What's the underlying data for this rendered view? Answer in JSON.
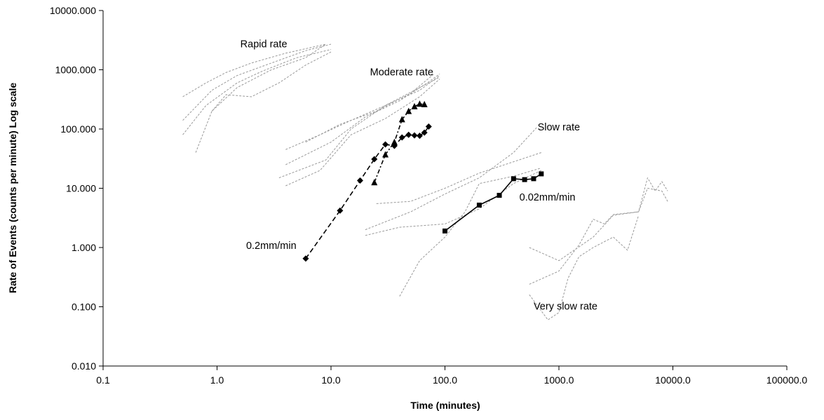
{
  "chart_data": {
    "type": "scatter",
    "title": "",
    "xlabel": "Time (minutes)",
    "ylabel": "Rate of Events (counts per minute) Log scale",
    "xscale": "log",
    "yscale": "log",
    "xlim": [
      0.1,
      100000
    ],
    "ylim": [
      0.01,
      10000
    ],
    "xticks": [
      "0.1",
      "1.0",
      "10.0",
      "100.0",
      "1000.0",
      "10000.0",
      "100000.0"
    ],
    "yticks": [
      "0.010",
      "0.100",
      "1.000",
      "10.000",
      "100.000",
      "1000.000",
      "10000.000"
    ],
    "grid": false,
    "legend": "none",
    "annotations": [
      {
        "text": "Rapid rate",
        "x": 1.6,
        "y": 2400
      },
      {
        "text": "Moderate rate",
        "x": 22,
        "y": 800
      },
      {
        "text": "Slow rate",
        "x": 650,
        "y": 95
      },
      {
        "text": "0.02mm/min",
        "x": 450,
        "y": 6.2
      },
      {
        "text": "0.2mm/min",
        "x": 1.8,
        "y": 0.95
      },
      {
        "text": "Very slow rate",
        "x": 600,
        "y": 0.09
      }
    ],
    "series": [
      {
        "label": "0.2mm/min",
        "style": "dashed",
        "marker": "diamond",
        "color": "#000000",
        "x": [
          6,
          12,
          18,
          24,
          30,
          36,
          42,
          48,
          54,
          60,
          66,
          72
        ],
        "y": [
          0.65,
          4.2,
          13.5,
          31,
          55,
          52,
          72,
          80,
          78,
          77,
          87,
          110
        ]
      },
      {
        "style": "dash-dot",
        "marker": "triangle",
        "color": "#000000",
        "x": [
          24,
          30,
          36,
          42,
          48,
          54,
          60,
          66
        ],
        "y": [
          12.5,
          37,
          60,
          145,
          200,
          240,
          265,
          260
        ]
      },
      {
        "label": "0.02mm/min",
        "style": "solid",
        "marker": "square",
        "color": "#000000",
        "x": [
          100,
          200,
          300,
          400,
          500,
          600,
          700
        ],
        "y": [
          1.9,
          5.2,
          7.6,
          14.5,
          14,
          14.5,
          17.5
        ]
      },
      {
        "group": "Rapid rate",
        "style": "dotted",
        "color": "#999999",
        "x": [
          0.5,
          0.8,
          1.2,
          2,
          4,
          9
        ],
        "y": [
          350,
          600,
          900,
          1300,
          1900,
          2700
        ]
      },
      {
        "group": "Rapid rate",
        "style": "dotted",
        "color": "#999999",
        "x": [
          0.5,
          0.9,
          1.5,
          3,
          6,
          10
        ],
        "y": [
          140,
          450,
          800,
          1300,
          2100,
          2700
        ]
      },
      {
        "group": "Rapid rate",
        "style": "dotted",
        "color": "#999999",
        "x": [
          0.5,
          0.8,
          1.5,
          2.5,
          5,
          10
        ],
        "y": [
          80,
          250,
          600,
          950,
          1600,
          2200
        ]
      },
      {
        "group": "Rapid rate",
        "style": "dotted",
        "color": "#999999",
        "x": [
          0.65,
          0.9,
          1.5,
          3,
          6,
          9
        ],
        "y": [
          40,
          200,
          500,
          1000,
          1600,
          2700
        ]
      },
      {
        "group": "Rapid rate",
        "style": "dotted",
        "color": "#999999",
        "x": [
          0.9,
          1.2,
          2,
          3.5,
          6,
          10
        ],
        "y": [
          200,
          380,
          350,
          600,
          1200,
          2000
        ]
      },
      {
        "group": "Moderate rate",
        "style": "dotted",
        "color": "#999999",
        "x": [
          4,
          8,
          15,
          30,
          60,
          90
        ],
        "y": [
          45,
          80,
          140,
          250,
          450,
          800
        ]
      },
      {
        "group": "Moderate rate",
        "style": "dotted",
        "color": "#999999",
        "x": [
          4,
          10,
          20,
          40,
          70,
          90
        ],
        "y": [
          25,
          60,
          160,
          300,
          600,
          850
        ]
      },
      {
        "group": "Moderate rate",
        "style": "dotted",
        "color": "#999999",
        "x": [
          3.5,
          9,
          15,
          30,
          60,
          90
        ],
        "y": [
          15,
          30,
          100,
          250,
          500,
          750
        ]
      },
      {
        "group": "Moderate rate",
        "style": "dotted",
        "color": "#999999",
        "x": [
          4,
          8,
          15,
          30,
          60,
          90
        ],
        "y": [
          11,
          20,
          80,
          150,
          350,
          700
        ]
      },
      {
        "group": "Moderate rate",
        "style": "dotted",
        "color": "#999999",
        "x": [
          6,
          12,
          25,
          50,
          80
        ],
        "y": [
          60,
          120,
          200,
          400,
          850
        ]
      },
      {
        "group": "Slow rate",
        "style": "dotted",
        "color": "#999999",
        "x": [
          20,
          50,
          100,
          200,
          400,
          650
        ],
        "y": [
          2,
          4,
          8,
          15,
          40,
          110
        ]
      },
      {
        "group": "Slow rate",
        "style": "dotted",
        "color": "#999999",
        "x": [
          20,
          40,
          100,
          200,
          400,
          700
        ],
        "y": [
          1.6,
          2.2,
          2.5,
          4.5,
          12,
          20
        ]
      },
      {
        "group": "Slow rate",
        "style": "dotted",
        "color": "#999999",
        "x": [
          25,
          50,
          100,
          200,
          400,
          700
        ],
        "y": [
          5.5,
          6,
          10,
          18,
          28,
          40
        ]
      },
      {
        "group": "Slow rate",
        "style": "dotted",
        "color": "#999999",
        "x": [
          40,
          60,
          100,
          150,
          200,
          400,
          700
        ],
        "y": [
          0.15,
          0.6,
          1.5,
          4,
          12,
          16,
          22
        ]
      },
      {
        "group": "Very slow rate",
        "style": "dotted",
        "color": "#999999",
        "x": [
          550,
          1000,
          2000,
          3000,
          5000,
          6000,
          8000,
          9000
        ],
        "y": [
          1.0,
          0.6,
          1.5,
          3.5,
          4,
          10,
          9,
          6
        ]
      },
      {
        "group": "Very slow rate",
        "style": "dotted",
        "color": "#999999",
        "x": [
          550,
          1000,
          1500,
          2000,
          2500,
          3000,
          5000,
          6000,
          7000,
          8000,
          9000
        ],
        "y": [
          0.24,
          0.4,
          1.1,
          3.0,
          2.5,
          3.6,
          4,
          15,
          9,
          13,
          9
        ]
      },
      {
        "group": "Very slow rate",
        "style": "dotted",
        "color": "#999999",
        "x": [
          550,
          800,
          1000,
          1200,
          1500,
          2000,
          3000,
          4000,
          5000
        ],
        "y": [
          0.16,
          0.06,
          0.08,
          0.3,
          0.7,
          1.0,
          1.5,
          0.9,
          3.5
        ]
      }
    ]
  }
}
